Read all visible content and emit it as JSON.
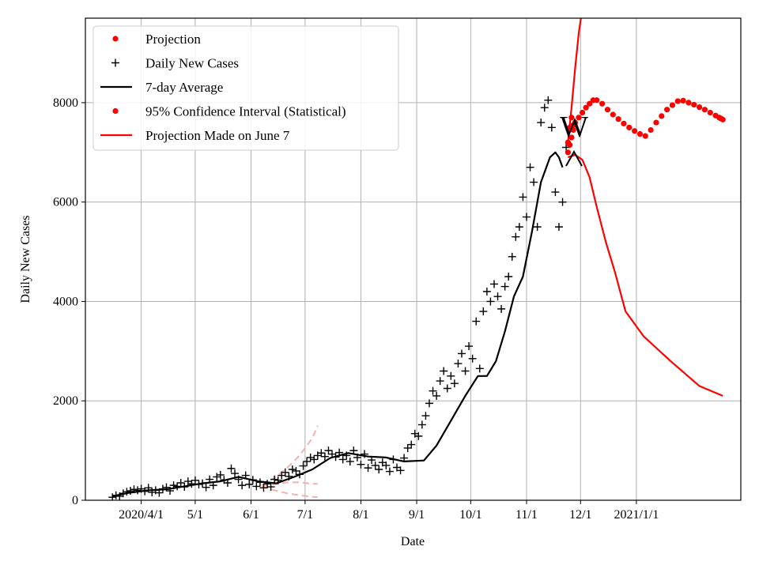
{
  "chart_data": {
    "type": "line",
    "title": "",
    "xlabel": "Date",
    "ylabel": "Daily New Cases",
    "xlim": [
      "2020-03-01",
      "2021-02-28"
    ],
    "ylim": [
      0,
      9700
    ],
    "grid": true,
    "legend_position": "top-left",
    "x_tick_labels": [
      "2020/4/1",
      "5/1",
      "6/1",
      "7/1",
      "8/1",
      "9/1",
      "10/1",
      "11/1",
      "12/1",
      "2021/1/1"
    ],
    "x_tick_dates": [
      "2020-04-01",
      "2020-05-01",
      "2020-06-01",
      "2020-07-01",
      "2020-08-01",
      "2020-09-01",
      "2020-10-01",
      "2020-11-01",
      "2020-12-01",
      "2021-01-01"
    ],
    "y_ticks": [
      0,
      2000,
      4000,
      6000,
      8000
    ],
    "y_tick_labels": [
      "0",
      "2000",
      "4000",
      "6000",
      "8000"
    ],
    "annotation_text": "W",
    "series": [
      {
        "name": "Projection",
        "kind": "points",
        "color": "#ff0000",
        "x": [
          "2020-11-24",
          "2020-11-25",
          "2020-11-26",
          "2020-11-27",
          "2020-11-28",
          "2020-11-30",
          "2020-12-02",
          "2020-12-04",
          "2020-12-06",
          "2020-12-08",
          "2020-12-10",
          "2020-12-13",
          "2020-12-16",
          "2020-12-19",
          "2020-12-22",
          "2020-12-25",
          "2020-12-28",
          "2020-12-31",
          "2021-01-03",
          "2021-01-06",
          "2021-01-09",
          "2021-01-12",
          "2021-01-15",
          "2021-01-18",
          "2021-01-21",
          "2021-01-24",
          "2021-01-27",
          "2021-01-30",
          "2021-02-02",
          "2021-02-05",
          "2021-02-08",
          "2021-02-11",
          "2021-02-14",
          "2021-02-16",
          "2021-02-17",
          "2021-02-18"
        ],
        "y": [
          7000,
          7150,
          7300,
          7450,
          7600,
          7700,
          7800,
          7900,
          7980,
          8050,
          8050,
          7980,
          7860,
          7760,
          7670,
          7580,
          7500,
          7430,
          7370,
          7330,
          7450,
          7600,
          7730,
          7860,
          7950,
          8030,
          8040,
          8000,
          7960,
          7910,
          7860,
          7800,
          7740,
          7700,
          7680,
          7660
        ]
      },
      {
        "name": "Daily New Cases",
        "kind": "markers",
        "color": "#000000",
        "x": [
          "2020-03-16",
          "2020-03-18",
          "2020-03-20",
          "2020-03-22",
          "2020-03-24",
          "2020-03-26",
          "2020-03-28",
          "2020-03-30",
          "2020-04-01",
          "2020-04-03",
          "2020-04-05",
          "2020-04-07",
          "2020-04-09",
          "2020-04-11",
          "2020-04-13",
          "2020-04-15",
          "2020-04-17",
          "2020-04-19",
          "2020-04-21",
          "2020-04-23",
          "2020-04-25",
          "2020-04-27",
          "2020-04-29",
          "2020-05-01",
          "2020-05-03",
          "2020-05-05",
          "2020-05-07",
          "2020-05-09",
          "2020-05-11",
          "2020-05-13",
          "2020-05-15",
          "2020-05-17",
          "2020-05-19",
          "2020-05-21",
          "2020-05-23",
          "2020-05-25",
          "2020-05-27",
          "2020-05-29",
          "2020-05-31",
          "2020-06-02",
          "2020-06-04",
          "2020-06-06",
          "2020-06-08",
          "2020-06-10",
          "2020-06-12",
          "2020-06-14",
          "2020-06-16",
          "2020-06-18",
          "2020-06-20",
          "2020-06-22",
          "2020-06-24",
          "2020-06-26",
          "2020-06-28",
          "2020-06-30",
          "2020-07-02",
          "2020-07-04",
          "2020-07-06",
          "2020-07-08",
          "2020-07-10",
          "2020-07-12",
          "2020-07-14",
          "2020-07-16",
          "2020-07-18",
          "2020-07-20",
          "2020-07-22",
          "2020-07-24",
          "2020-07-26",
          "2020-07-28",
          "2020-07-30",
          "2020-08-01",
          "2020-08-03",
          "2020-08-05",
          "2020-08-07",
          "2020-08-09",
          "2020-08-11",
          "2020-08-13",
          "2020-08-15",
          "2020-08-17",
          "2020-08-19",
          "2020-08-21",
          "2020-08-23",
          "2020-08-25",
          "2020-08-27",
          "2020-08-29",
          "2020-08-31",
          "2020-09-02",
          "2020-09-04",
          "2020-09-06",
          "2020-09-08",
          "2020-09-10",
          "2020-09-12",
          "2020-09-14",
          "2020-09-16",
          "2020-09-18",
          "2020-09-20",
          "2020-09-22",
          "2020-09-24",
          "2020-09-26",
          "2020-09-28",
          "2020-09-30",
          "2020-10-02",
          "2020-10-04",
          "2020-10-06",
          "2020-10-08",
          "2020-10-10",
          "2020-10-12",
          "2020-10-14",
          "2020-10-16",
          "2020-10-18",
          "2020-10-20",
          "2020-10-22",
          "2020-10-24",
          "2020-10-26",
          "2020-10-28",
          "2020-10-30",
          "2020-11-01",
          "2020-11-03",
          "2020-11-05",
          "2020-11-07",
          "2020-11-09",
          "2020-11-11",
          "2020-11-13",
          "2020-11-15",
          "2020-11-17",
          "2020-11-19",
          "2020-11-21",
          "2020-11-23"
        ],
        "y": [
          60,
          100,
          80,
          140,
          170,
          190,
          220,
          200,
          230,
          180,
          250,
          160,
          200,
          150,
          230,
          260,
          190,
          300,
          280,
          350,
          270,
          380,
          330,
          400,
          320,
          340,
          260,
          420,
          300,
          470,
          510,
          410,
          350,
          640,
          540,
          420,
          300,
          500,
          320,
          410,
          280,
          360,
          250,
          330,
          270,
          420,
          400,
          500,
          560,
          480,
          620,
          590,
          520,
          690,
          780,
          860,
          820,
          900,
          950,
          880,
          1000,
          930,
          870,
          960,
          820,
          900,
          780,
          1000,
          860,
          720,
          930,
          650,
          810,
          700,
          620,
          760,
          700,
          580,
          820,
          660,
          600,
          850,
          1050,
          1120,
          1340,
          1290,
          1520,
          1700,
          1950,
          2200,
          2100,
          2400,
          2600,
          2250,
          2500,
          2350,
          2750,
          2950,
          2600,
          3100,
          2850,
          3600,
          2650,
          3800,
          4200,
          4000,
          4350,
          4100,
          3850,
          4300,
          4500,
          4900,
          5300,
          5500,
          6100,
          5700,
          6700,
          6400,
          5500,
          7600,
          7900,
          8050,
          7500,
          6200,
          5500,
          6000,
          7100
        ]
      },
      {
        "name": "7-day Average",
        "kind": "line",
        "color": "#000000",
        "x": [
          "2020-03-16",
          "2020-03-25",
          "2020-04-05",
          "2020-04-15",
          "2020-04-25",
          "2020-05-05",
          "2020-05-15",
          "2020-05-25",
          "2020-06-05",
          "2020-06-15",
          "2020-06-25",
          "2020-07-05",
          "2020-07-15",
          "2020-07-25",
          "2020-08-05",
          "2020-08-15",
          "2020-08-25",
          "2020-09-05",
          "2020-09-12",
          "2020-09-20",
          "2020-09-28",
          "2020-10-05",
          "2020-10-10",
          "2020-10-15",
          "2020-10-20",
          "2020-10-25",
          "2020-10-30",
          "2020-11-04",
          "2020-11-09",
          "2020-11-14",
          "2020-11-17",
          "2020-11-19",
          "2020-11-21"
        ],
        "y": [
          80,
          150,
          200,
          220,
          280,
          340,
          380,
          470,
          380,
          340,
          470,
          620,
          850,
          950,
          880,
          860,
          780,
          800,
          1100,
          1600,
          2100,
          2500,
          2500,
          2800,
          3400,
          4100,
          4500,
          5400,
          6400,
          6900,
          7000,
          6900,
          6700
        ]
      },
      {
        "name": "95% Confidence Interval (Statistical)",
        "kind": "points",
        "color": "#ff0000",
        "x": [
          "2020-11-24",
          "2020-11-25",
          "2020-11-26",
          "2020-11-27"
        ],
        "y": [
          7200,
          7500,
          7700,
          7550
        ]
      },
      {
        "name": "Projection Made on June 7",
        "kind": "line",
        "color": "#ff0000",
        "x": [
          "2020-11-24",
          "2020-11-28",
          "2020-12-02",
          "2020-12-06",
          "2020-12-10",
          "2020-12-15",
          "2020-12-20",
          "2020-12-26",
          "2021-01-05",
          "2021-01-20",
          "2021-02-05",
          "2021-02-18"
        ],
        "y": [
          6900,
          6950,
          6850,
          6500,
          5900,
          5200,
          4600,
          3800,
          3300,
          2800,
          2300,
          2100
        ]
      },
      {
        "name": "",
        "kind": "line",
        "color": "#ff0000",
        "x": [
          "2020-11-24",
          "2020-11-26",
          "2020-11-28",
          "2020-11-30",
          "2020-12-02"
        ],
        "y": [
          7200,
          7900,
          8700,
          9400,
          9900
        ]
      },
      {
        "name": "",
        "kind": "dashed",
        "color": "#f4b0aa",
        "x": [
          "2020-06-07",
          "2020-06-14",
          "2020-06-21",
          "2020-06-28",
          "2020-07-05",
          "2020-07-08"
        ],
        "y": [
          300,
          450,
          650,
          900,
          1250,
          1500
        ]
      },
      {
        "name": "",
        "kind": "dashed",
        "color": "#f4b0aa",
        "x": [
          "2020-06-07",
          "2020-06-14",
          "2020-06-21",
          "2020-06-28",
          "2020-07-05",
          "2020-07-08"
        ],
        "y": [
          300,
          320,
          360,
          360,
          330,
          330
        ]
      },
      {
        "name": "",
        "kind": "dashed",
        "color": "#f4b0aa",
        "x": [
          "2020-06-07",
          "2020-06-14",
          "2020-06-21",
          "2020-06-28",
          "2020-07-05",
          "2020-07-08"
        ],
        "y": [
          280,
          200,
          140,
          100,
          70,
          60
        ]
      }
    ]
  }
}
